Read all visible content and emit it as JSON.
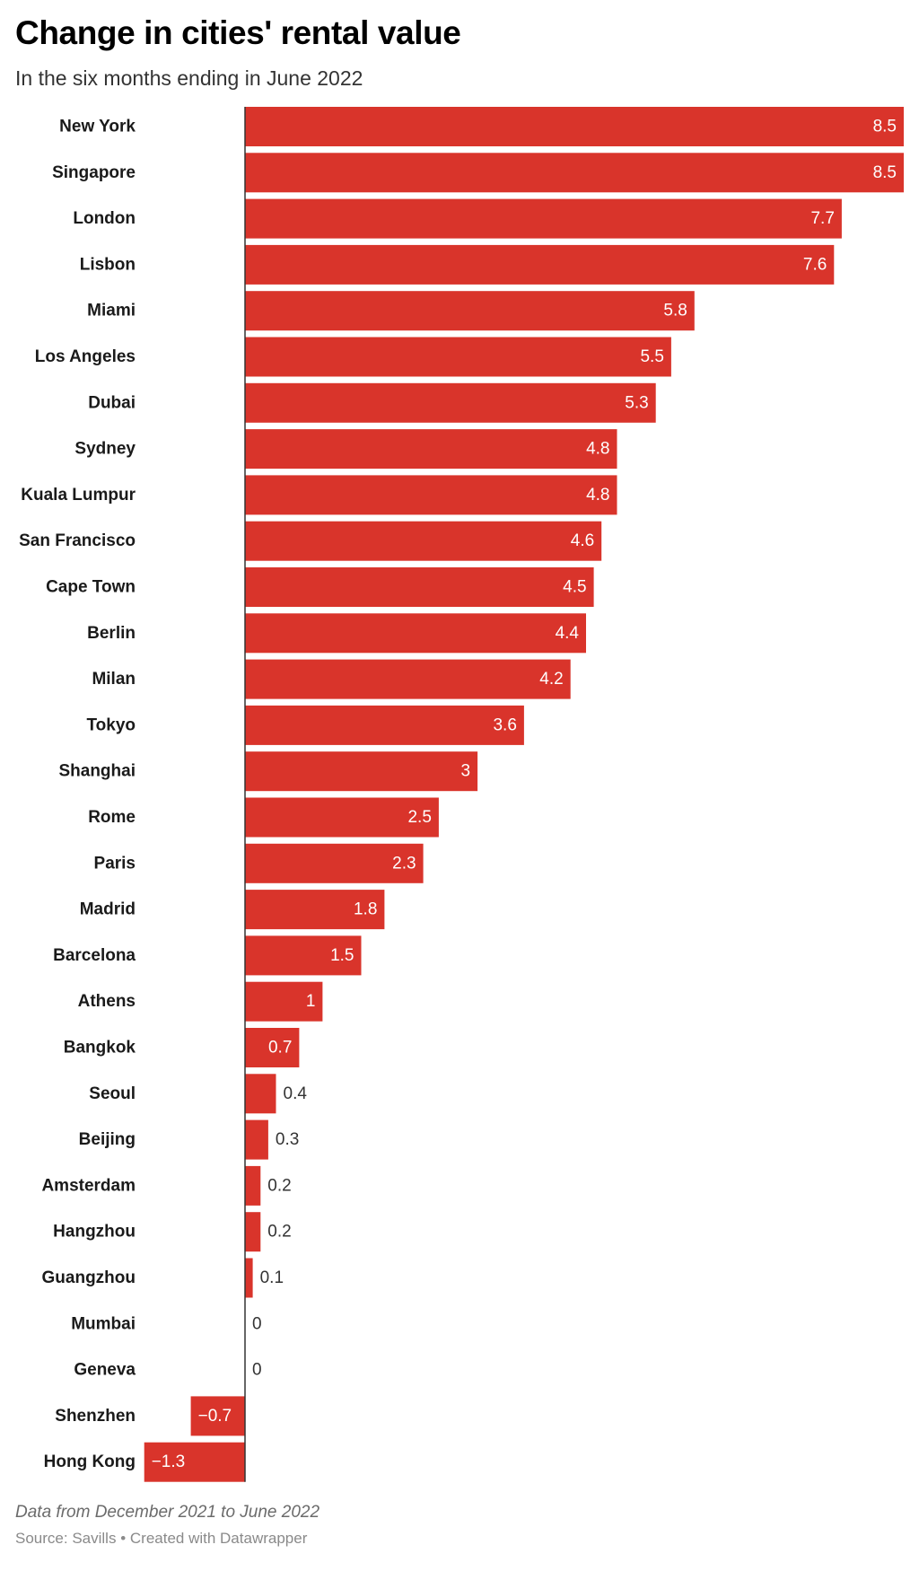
{
  "header": {
    "title": "Change in cities' rental value",
    "subtitle": "In the six months ending in June 2022"
  },
  "footer": {
    "notes": "Data from December 2021 to June 2022",
    "source_label": "Source:",
    "source": "Savills",
    "separator": "•",
    "credit": "Created with Datawrapper"
  },
  "colors": {
    "bar": "#d9342b",
    "label_inside": "#ffffff",
    "label_outside": "#333333",
    "category_label": "#1a1a1a",
    "axis": "#333333"
  },
  "chart_data": {
    "type": "bar",
    "orientation": "horizontal",
    "title": "Change in cities' rental value",
    "subtitle": "In the six months ending in June 2022",
    "categories": [
      "New York",
      "Singapore",
      "London",
      "Lisbon",
      "Miami",
      "Los Angeles",
      "Dubai",
      "Sydney",
      "Kuala Lumpur",
      "San Francisco",
      "Cape Town",
      "Berlin",
      "Milan",
      "Tokyo",
      "Shanghai",
      "Rome",
      "Paris",
      "Madrid",
      "Barcelona",
      "Athens",
      "Bangkok",
      "Seoul",
      "Beijing",
      "Amsterdam",
      "Hangzhou",
      "Guangzhou",
      "Mumbai",
      "Geneva",
      "Shenzhen",
      "Hong Kong"
    ],
    "values": [
      8.5,
      8.5,
      7.7,
      7.6,
      5.8,
      5.5,
      5.3,
      4.8,
      4.8,
      4.6,
      4.5,
      4.4,
      4.2,
      3.6,
      3,
      2.5,
      2.3,
      1.8,
      1.5,
      1,
      0.7,
      0.4,
      0.3,
      0.2,
      0.2,
      0.1,
      0,
      0,
      -0.7,
      -1.3
    ],
    "value_labels": [
      "8.5",
      "8.5",
      "7.7",
      "7.6",
      "5.8",
      "5.5",
      "5.3",
      "4.8",
      "4.8",
      "4.6",
      "4.5",
      "4.4",
      "4.2",
      "3.6",
      "3",
      "2.5",
      "2.3",
      "1.8",
      "1.5",
      "1",
      "0.7",
      "0.4",
      "0.3",
      "0.2",
      "0.2",
      "0.1",
      "0",
      "0",
      "−0.7",
      "−1.3"
    ],
    "xlim": [
      -1.3,
      8.5
    ],
    "xlabel": "",
    "ylabel": "",
    "grid": false,
    "legend": "none"
  }
}
